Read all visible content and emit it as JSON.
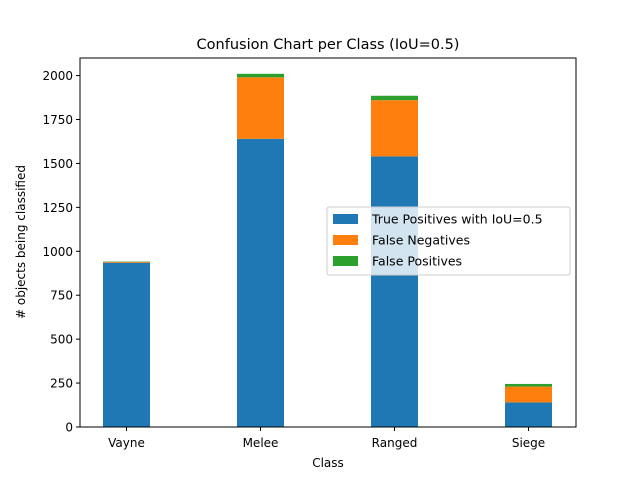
{
  "chart_data": {
    "type": "bar",
    "stacked": true,
    "title": "Confusion Chart per Class (IoU=0.5)",
    "xlabel": "Class",
    "ylabel": "# objects being classified",
    "categories": [
      "Vayne",
      "Melee",
      "Ranged",
      "Siege"
    ],
    "ylim": [
      0,
      2100
    ],
    "yticks": [
      0,
      250,
      500,
      750,
      1000,
      1250,
      1500,
      1750,
      2000
    ],
    "grid": false,
    "legend_position": "center-right",
    "series": [
      {
        "name": "True Positives with IoU=0.5",
        "color": "#1f77b4",
        "values": [
          935,
          1640,
          1540,
          140
        ]
      },
      {
        "name": "False Negatives",
        "color": "#ff7f0e",
        "values": [
          5,
          350,
          320,
          90
        ]
      },
      {
        "name": "False Positives",
        "color": "#2ca02c",
        "values": [
          2,
          20,
          25,
          15
        ]
      }
    ]
  }
}
